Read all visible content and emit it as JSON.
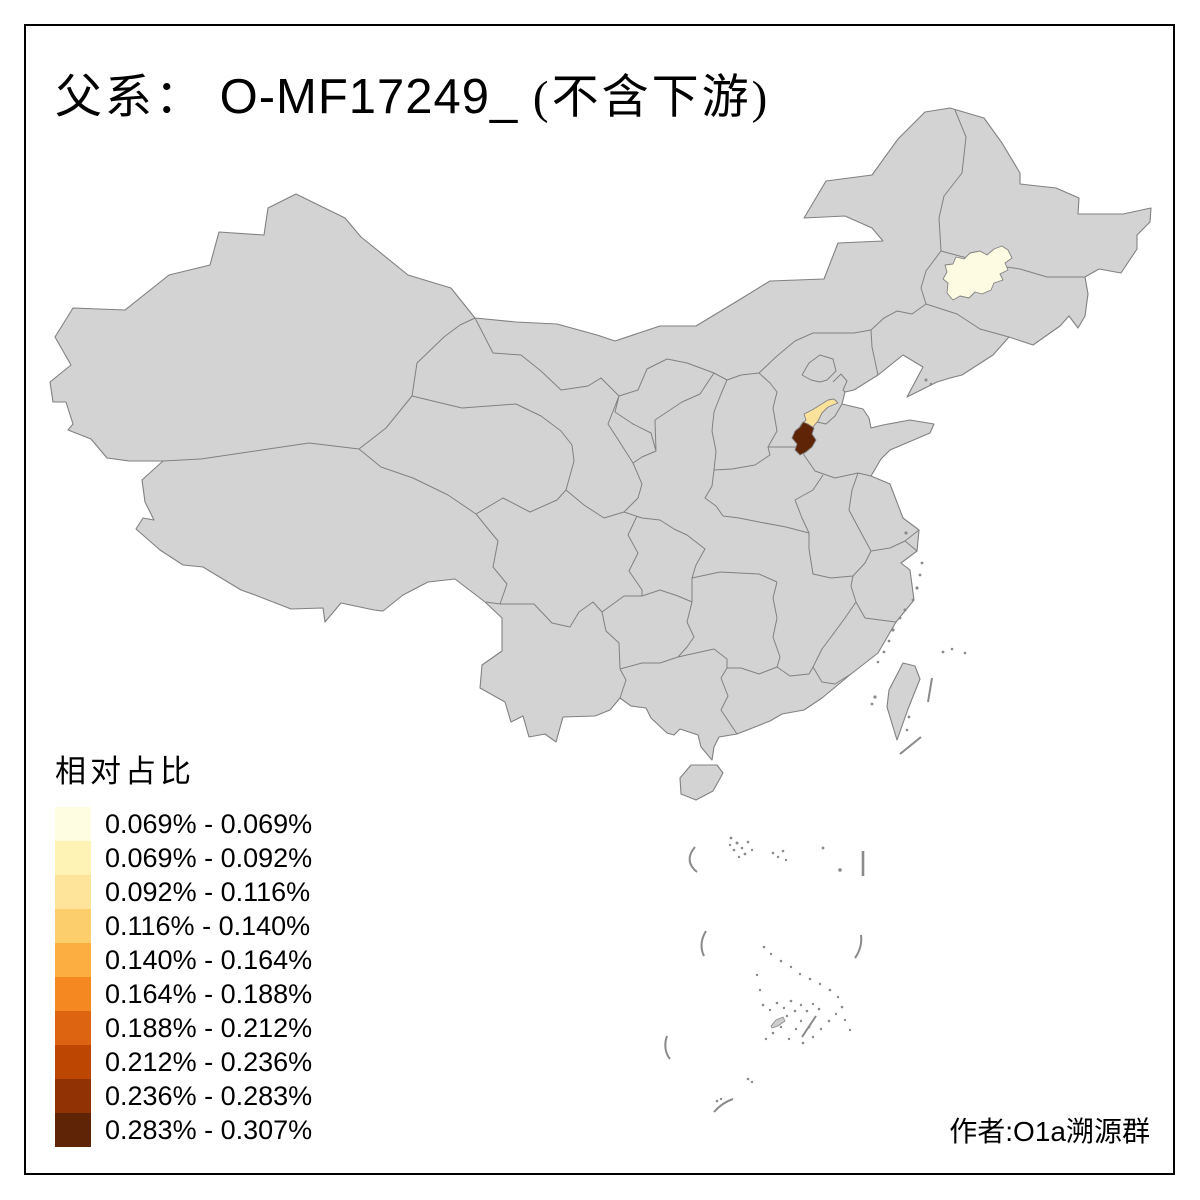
{
  "title": {
    "prefix": "父系：",
    "haplogroup": " O-MF17249_ ",
    "suffix": "(不含下游)"
  },
  "legend": {
    "title": "相对占比",
    "items": [
      {
        "range": "0.069% - 0.069%",
        "color": "#fffde1"
      },
      {
        "range": "0.069% - 0.092%",
        "color": "#fef3b4"
      },
      {
        "range": "0.092% - 0.116%",
        "color": "#fde49a"
      },
      {
        "range": "0.116% - 0.140%",
        "color": "#fdce6c"
      },
      {
        "range": "0.140% - 0.164%",
        "color": "#fcae41"
      },
      {
        "range": "0.164% - 0.188%",
        "color": "#f58821"
      },
      {
        "range": "0.188% - 0.212%",
        "color": "#dd6410"
      },
      {
        "range": "0.212% - 0.236%",
        "color": "#bc4602"
      },
      {
        "range": "0.236% - 0.283%",
        "color": "#913204"
      },
      {
        "range": "0.283% - 0.307%",
        "color": "#5f2306"
      }
    ]
  },
  "credit": "作者:O1a溯源群",
  "map": {
    "land_color": "#d3d3d3",
    "border_color": "#818181",
    "sea_color": "#ffffff",
    "frame_color": "#000000",
    "regions": [
      {
        "name": "northeast-prefecture",
        "color": "#fdfbe1",
        "legend_range": "0.069% - 0.069%"
      },
      {
        "name": "shandong-light-prefecture",
        "color": "#fbe29b",
        "legend_range": "0.092% - 0.116%"
      },
      {
        "name": "shandong-dark-prefecture",
        "color": "#5f2306",
        "legend_range": "0.283% - 0.307%"
      }
    ]
  }
}
